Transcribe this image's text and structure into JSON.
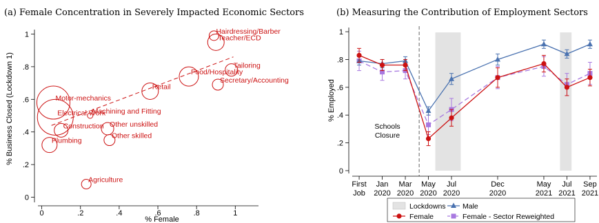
{
  "chart_data": [
    {
      "type": "scatter",
      "title": "(a) Female Concentration in Severely Impacted Economic Sectors",
      "xlabel": "% Female",
      "ylabel": "% Business Closed (Lockdown 1)",
      "xlim": [
        -0.02,
        1.12
      ],
      "ylim": [
        -0.04,
        1.04
      ],
      "xticks": [
        {
          "v": 0,
          "label": "0"
        },
        {
          "v": 0.2,
          "label": ".2"
        },
        {
          "v": 0.4,
          "label": ".4"
        },
        {
          "v": 0.6,
          "label": ".6"
        },
        {
          "v": 0.8,
          "label": ".8"
        },
        {
          "v": 1,
          "label": "1"
        }
      ],
      "yticks": [
        {
          "v": 0,
          "label": "0"
        },
        {
          "v": 0.2,
          "label": ".2"
        },
        {
          "v": 0.4,
          "label": ".4"
        },
        {
          "v": 0.6,
          "label": ".6"
        },
        {
          "v": 0.8,
          "label": ".8"
        },
        {
          "v": 1,
          "label": "1"
        }
      ],
      "grid": false,
      "marker_color": "#cc1111",
      "points": [
        {
          "label": "Motor-mechanics",
          "x": 0.06,
          "y": 0.58,
          "size": 24
        },
        {
          "label": "Electrical Work",
          "x": 0.07,
          "y": 0.49,
          "size": 26
        },
        {
          "label": "Machining and Fitting",
          "x": 0.25,
          "y": 0.5,
          "size": 4
        },
        {
          "label": "Construction",
          "x": 0.1,
          "y": 0.41,
          "size": 10
        },
        {
          "label": "Plumbing",
          "x": 0.04,
          "y": 0.32,
          "size": 11
        },
        {
          "label": "Other unskilled",
          "x": 0.34,
          "y": 0.42,
          "size": 9
        },
        {
          "label": "Other skilled",
          "x": 0.35,
          "y": 0.35,
          "size": 8
        },
        {
          "label": "Agriculture",
          "x": 0.23,
          "y": 0.08,
          "size": 7
        },
        {
          "label": "Retail",
          "x": 0.56,
          "y": 0.65,
          "size": 12
        },
        {
          "label": "Food/Hospitality",
          "x": 0.76,
          "y": 0.74,
          "size": 14
        },
        {
          "label": "Tailoring",
          "x": 0.98,
          "y": 0.78,
          "size": 9
        },
        {
          "label": "Secretary/Accounting",
          "x": 0.91,
          "y": 0.69,
          "size": 8
        },
        {
          "label": "Hairdressing/Barber",
          "x": 0.89,
          "y": 0.99,
          "size": 7
        },
        {
          "label": "Teacher/ECD",
          "x": 0.9,
          "y": 0.95,
          "size": 12
        }
      ],
      "fit_line": {
        "style": "dashed",
        "x": [
          0.05,
          0.99
        ],
        "y": [
          0.44,
          0.86
        ]
      }
    },
    {
      "type": "line",
      "title": "(b) Measuring the Contribution of Employment Sectors",
      "ylabel": "% Employed",
      "ylim": [
        -0.03,
        1.04
      ],
      "yticks": [
        {
          "v": 0,
          "label": "0"
        },
        {
          "v": 0.2,
          "label": ".2"
        },
        {
          "v": 0.4,
          "label": ".4"
        },
        {
          "v": 0.6,
          "label": ".6"
        },
        {
          "v": 0.8,
          "label": ".8"
        },
        {
          "v": 1,
          "label": "1"
        }
      ],
      "x_positions": [
        0,
        1,
        2,
        3,
        4,
        6,
        8,
        9,
        10
      ],
      "xlim": [
        -0.3,
        10.3
      ],
      "categories": [
        [
          "First",
          "Job"
        ],
        [
          "Jan",
          "2020"
        ],
        [
          "Mar",
          "2020"
        ],
        [
          "May",
          "2020"
        ],
        [
          "Jul",
          "2020"
        ],
        [
          "Dec",
          "2020"
        ],
        [
          "May",
          "2021"
        ],
        [
          "Jul",
          "2021"
        ],
        [
          "Sep",
          "2021"
        ]
      ],
      "series": [
        {
          "name": "Male",
          "color": "#4a72b0",
          "marker": "triangle",
          "dash": "",
          "values": [
            0.79,
            0.77,
            0.79,
            0.43,
            0.66,
            0.8,
            0.91,
            0.84,
            0.91
          ],
          "err": [
            0.03,
            0.03,
            0.03,
            0.03,
            0.04,
            0.04,
            0.03,
            0.03,
            0.03
          ]
        },
        {
          "name": "Female",
          "color": "#cc1111",
          "marker": "circle",
          "dash": "",
          "values": [
            0.83,
            0.76,
            0.76,
            0.23,
            0.38,
            0.67,
            0.77,
            0.6,
            0.67
          ],
          "err": [
            0.05,
            0.04,
            0.04,
            0.05,
            0.06,
            0.07,
            0.06,
            0.06,
            0.06
          ]
        },
        {
          "name": "Female - Sector Reweighted",
          "color": "#a879e0",
          "marker": "square",
          "dash": "7,4",
          "values": [
            0.79,
            0.71,
            0.72,
            0.33,
            0.44,
            0.67,
            0.75,
            0.62,
            0.7
          ],
          "err": [
            0.07,
            0.06,
            0.06,
            0.07,
            0.08,
            0.08,
            0.07,
            0.08,
            0.08
          ]
        }
      ],
      "shaded_regions": [
        {
          "from": 3.3,
          "to": 4.4
        },
        {
          "from": 8.7,
          "to": 9.2
        }
      ],
      "vline": {
        "x": 2.6,
        "style": "dashed"
      },
      "annotation": [
        "Schools",
        "Closure"
      ],
      "legend": {
        "position": "bottom",
        "shade_label": "Lockdowns"
      }
    }
  ]
}
